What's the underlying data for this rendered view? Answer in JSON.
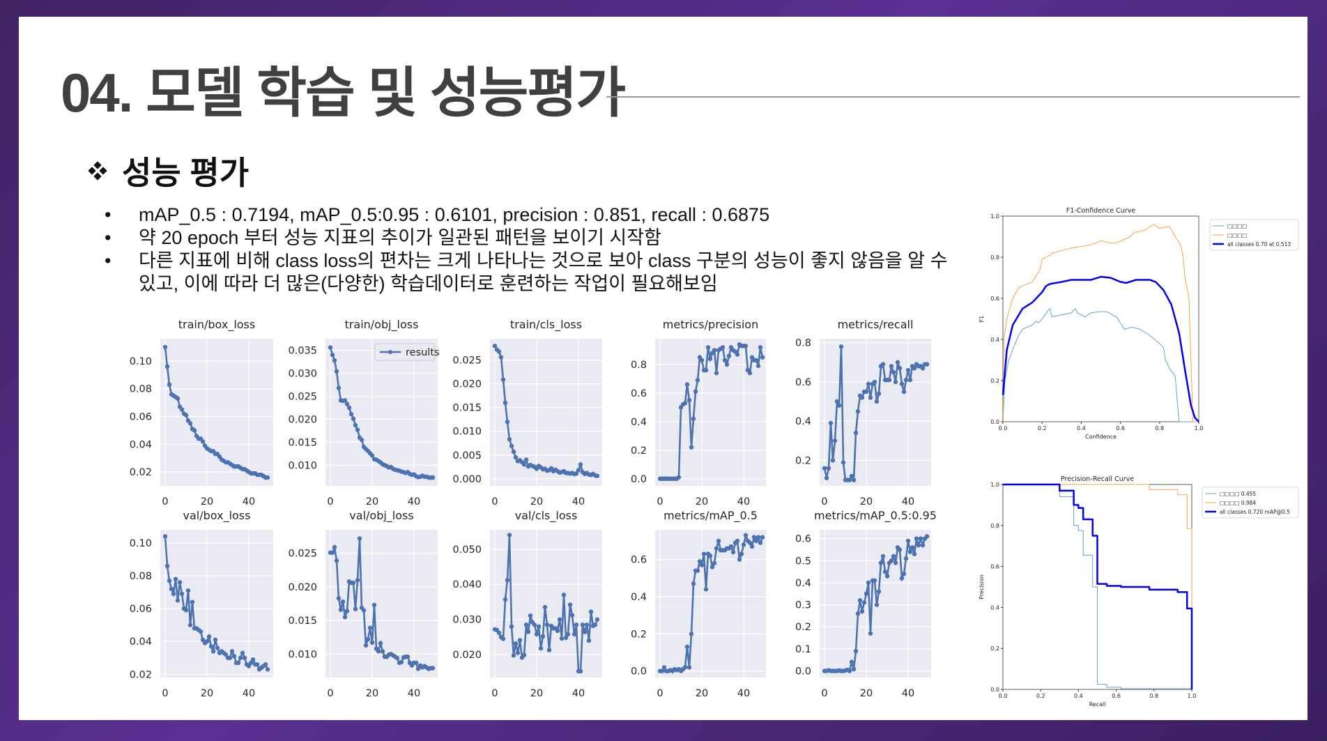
{
  "slide": {
    "title": "04. 모델 학습 및 성능평가",
    "section": "성능 평가",
    "bullets": [
      "mAP_0.5 : 0.7194, mAP_0.5:0.95 : 0.6101, precision : 0.851, recall : 0.6875",
      "약 20 epoch 부터 성능 지표의 추이가 일관된 패턴을 보이기 시작함",
      "다른 지표에 비해 class loss의 편차는 크게 나타나는 것으로 보아 class 구분의 성능이 좋지 않음을 알 수"
    ],
    "bullet_continuation": "있고, 이에 따라 더 많은(다양한) 학습데이터로 훈련하는 작업이 필요해보임",
    "bullet_marker": "•",
    "colors": {
      "frame": "#4a2878",
      "title": "#404040",
      "series": "#4c72b0",
      "plot_bg": "#eaeaf2"
    }
  },
  "chart_data": [
    {
      "type": "line",
      "title": "train/box_loss",
      "xlabel": "",
      "ylabel": "",
      "xticks": [
        0,
        20,
        40
      ],
      "yticks": [
        0.02,
        0.04,
        0.06,
        0.08,
        0.1
      ],
      "ylim": [
        0.01,
        0.116
      ],
      "legend": null,
      "values": [
        0.11,
        0.096,
        0.083,
        0.076,
        0.075,
        0.074,
        0.073,
        0.067,
        0.065,
        0.062,
        0.061,
        0.057,
        0.055,
        0.051,
        0.05,
        0.046,
        0.044,
        0.044,
        0.042,
        0.039,
        0.037,
        0.036,
        0.035,
        0.035,
        0.033,
        0.033,
        0.031,
        0.029,
        0.028,
        0.027,
        0.027,
        0.026,
        0.025,
        0.024,
        0.024,
        0.024,
        0.023,
        0.022,
        0.022,
        0.021,
        0.02,
        0.019,
        0.019,
        0.019,
        0.018,
        0.018,
        0.018,
        0.017,
        0.016,
        0.016
      ]
    },
    {
      "type": "line",
      "title": "train/obj_loss",
      "xticks": [
        0,
        20,
        40
      ],
      "yticks": [
        0.01,
        0.015,
        0.02,
        0.025,
        0.03,
        0.035
      ],
      "ylim": [
        0.0055,
        0.0375
      ],
      "legend": "results",
      "values": [
        0.0356,
        0.034,
        0.0328,
        0.0304,
        0.0268,
        0.0241,
        0.024,
        0.0241,
        0.0233,
        0.0225,
        0.0211,
        0.0201,
        0.0187,
        0.0177,
        0.016,
        0.0155,
        0.014,
        0.0135,
        0.0131,
        0.0126,
        0.0121,
        0.0113,
        0.0112,
        0.0109,
        0.0106,
        0.0102,
        0.01,
        0.0098,
        0.0095,
        0.0096,
        0.0092,
        0.009,
        0.0089,
        0.0088,
        0.0086,
        0.0085,
        0.0083,
        0.0085,
        0.0081,
        0.0079,
        0.008,
        0.0076,
        0.0074,
        0.0075,
        0.0077,
        0.0075,
        0.0075,
        0.0073,
        0.0073,
        0.0073
      ]
    },
    {
      "type": "line",
      "title": "train/cls_loss",
      "xticks": [
        0,
        20,
        40
      ],
      "yticks": [
        0.0,
        0.005,
        0.01,
        0.015,
        0.02,
        0.025
      ],
      "ylim": [
        -0.0015,
        0.0295
      ],
      "legend": null,
      "values": [
        0.028,
        0.0272,
        0.0268,
        0.0256,
        0.0209,
        0.016,
        0.012,
        0.0083,
        0.0069,
        0.0057,
        0.0045,
        0.0037,
        0.0039,
        0.0035,
        0.003,
        0.004,
        0.0026,
        0.0029,
        0.0027,
        0.0025,
        0.0021,
        0.0027,
        0.0024,
        0.002,
        0.0021,
        0.0017,
        0.0018,
        0.0022,
        0.0016,
        0.0019,
        0.0016,
        0.0013,
        0.0014,
        0.0016,
        0.0012,
        0.0012,
        0.0011,
        0.0012,
        0.001,
        0.0011,
        0.0018,
        0.003,
        0.0014,
        0.001,
        0.0012,
        0.0009,
        0.0008,
        0.001,
        0.0007,
        0.0006
      ]
    },
    {
      "type": "line",
      "title": "metrics/precision",
      "xticks": [
        0,
        20,
        40
      ],
      "yticks": [
        0.0,
        0.2,
        0.4,
        0.6,
        0.8
      ],
      "ylim": [
        -0.05,
        0.98
      ],
      "legend": null,
      "values": [
        0.0,
        0.0,
        0.0,
        0.0,
        0.0,
        0.0,
        0.0,
        0.0,
        0.0,
        0.01,
        0.5,
        0.52,
        0.53,
        0.66,
        0.55,
        0.22,
        0.42,
        0.61,
        0.69,
        0.85,
        0.83,
        0.76,
        0.76,
        0.92,
        0.84,
        0.88,
        0.9,
        0.74,
        0.9,
        0.91,
        0.92,
        0.83,
        0.8,
        0.86,
        0.92,
        0.9,
        0.89,
        0.87,
        0.94,
        0.93,
        0.93,
        0.93,
        0.76,
        0.74,
        0.85,
        0.83,
        0.83,
        0.79,
        0.92,
        0.85
      ]
    },
    {
      "type": "line",
      "title": "metrics/recall",
      "xticks": [
        0,
        20,
        40
      ],
      "yticks": [
        0.2,
        0.4,
        0.6,
        0.8
      ],
      "ylim": [
        0.07,
        0.82
      ],
      "legend": null,
      "values": [
        0.16,
        0.11,
        0.16,
        0.39,
        0.2,
        0.3,
        0.5,
        0.48,
        0.78,
        0.19,
        0.1,
        0.1,
        0.1,
        0.12,
        0.1,
        0.34,
        0.45,
        0.53,
        0.52,
        0.55,
        0.55,
        0.59,
        0.52,
        0.59,
        0.6,
        0.5,
        0.54,
        0.68,
        0.69,
        0.61,
        0.61,
        0.61,
        0.68,
        0.65,
        0.6,
        0.7,
        0.67,
        0.59,
        0.55,
        0.61,
        0.66,
        0.61,
        0.68,
        0.67,
        0.69,
        0.68,
        0.68,
        0.67,
        0.69,
        0.69
      ]
    },
    {
      "type": "line",
      "title": "val/box_loss",
      "xticks": [
        0,
        20,
        40
      ],
      "yticks": [
        0.02,
        0.04,
        0.06,
        0.08,
        0.1
      ],
      "ylim": [
        0.018,
        0.108
      ],
      "legend": null,
      "values": [
        0.104,
        0.086,
        0.077,
        0.072,
        0.069,
        0.078,
        0.065,
        0.076,
        0.069,
        0.06,
        0.059,
        0.071,
        0.05,
        0.064,
        0.048,
        0.048,
        0.047,
        0.046,
        0.041,
        0.039,
        0.04,
        0.043,
        0.037,
        0.034,
        0.041,
        0.036,
        0.033,
        0.034,
        0.033,
        0.032,
        0.03,
        0.03,
        0.034,
        0.031,
        0.027,
        0.027,
        0.03,
        0.033,
        0.03,
        0.026,
        0.025,
        0.027,
        0.029,
        0.026,
        0.026,
        0.023,
        0.024,
        0.025,
        0.026,
        0.023
      ]
    },
    {
      "type": "line",
      "title": "val/obj_loss",
      "xticks": [
        0,
        20,
        40
      ],
      "yticks": [
        0.01,
        0.015,
        0.02,
        0.025
      ],
      "ylim": [
        0.0065,
        0.0285
      ],
      "legend": null,
      "values": [
        0.0251,
        0.0251,
        0.0259,
        0.0239,
        0.0183,
        0.0166,
        0.0178,
        0.0155,
        0.0164,
        0.0208,
        0.0206,
        0.0206,
        0.0167,
        0.021,
        0.0272,
        0.0169,
        0.0165,
        0.0113,
        0.0122,
        0.0139,
        0.0117,
        0.0173,
        0.0108,
        0.0104,
        0.0116,
        0.0104,
        0.0096,
        0.0096,
        0.0099,
        0.01,
        0.0098,
        0.0096,
        0.0094,
        0.0087,
        0.0088,
        0.0095,
        0.0096,
        0.0096,
        0.0087,
        0.0083,
        0.0087,
        0.0087,
        0.0078,
        0.0083,
        0.008,
        0.0082,
        0.008,
        0.0078,
        0.0079,
        0.0079
      ]
    },
    {
      "type": "line",
      "title": "val/cls_loss",
      "xticks": [
        0,
        20,
        40
      ],
      "yticks": [
        0.02,
        0.03,
        0.04,
        0.05
      ],
      "ylim": [
        0.0135,
        0.0555
      ],
      "legend": null,
      "values": [
        0.0272,
        0.027,
        0.0262,
        0.025,
        0.0245,
        0.0357,
        0.0412,
        0.054,
        0.028,
        0.0198,
        0.0232,
        0.0205,
        0.0241,
        0.0192,
        0.0199,
        0.0285,
        0.0265,
        0.0311,
        0.0292,
        0.0285,
        0.0258,
        0.028,
        0.0218,
        0.0252,
        0.0335,
        0.0285,
        0.0213,
        0.0282,
        0.0275,
        0.0275,
        0.0268,
        0.03,
        0.0246,
        0.037,
        0.0248,
        0.0258,
        0.0342,
        0.0312,
        0.0258,
        0.0285,
        0.0153,
        0.0153,
        0.0285,
        0.0265,
        0.0285,
        0.024,
        0.0322,
        0.0282,
        0.0285,
        0.03
      ]
    },
    {
      "type": "line",
      "title": "metrics/mAP_0.5",
      "xticks": [
        0,
        20,
        40
      ],
      "yticks": [
        0.0,
        0.2,
        0.4,
        0.6
      ],
      "ylim": [
        -0.035,
        0.76
      ],
      "legend": null,
      "values": [
        0.0,
        0.0,
        0.02,
        0.0,
        0.0,
        0.005,
        0.0,
        0.01,
        0.005,
        0.01,
        0.0,
        0.01,
        0.02,
        0.13,
        0.02,
        0.2,
        0.47,
        0.54,
        0.54,
        0.59,
        0.57,
        0.63,
        0.44,
        0.63,
        0.62,
        0.56,
        0.58,
        0.66,
        0.7,
        0.65,
        0.65,
        0.65,
        0.66,
        0.66,
        0.67,
        0.64,
        0.69,
        0.7,
        0.6,
        0.63,
        0.68,
        0.73,
        0.7,
        0.69,
        0.67,
        0.72,
        0.7,
        0.72,
        0.69,
        0.72
      ]
    },
    {
      "type": "line",
      "title": "metrics/mAP_0.5:0.95",
      "xticks": [
        0,
        20,
        40
      ],
      "yticks": [
        0.0,
        0.1,
        0.2,
        0.3,
        0.4,
        0.5,
        0.6
      ],
      "ylim": [
        -0.03,
        0.64
      ],
      "legend": null,
      "values": [
        0.0,
        0.0,
        0.003,
        0.0,
        0.0,
        0.0,
        0.0,
        0.002,
        0.0,
        0.0,
        0.002,
        0.005,
        0.0,
        0.04,
        0.008,
        0.09,
        0.26,
        0.32,
        0.27,
        0.31,
        0.35,
        0.4,
        0.17,
        0.41,
        0.41,
        0.3,
        0.36,
        0.49,
        0.52,
        0.45,
        0.43,
        0.49,
        0.5,
        0.52,
        0.49,
        0.56,
        0.55,
        0.42,
        0.44,
        0.51,
        0.59,
        0.54,
        0.56,
        0.53,
        0.6,
        0.57,
        0.6,
        0.57,
        0.6,
        0.61
      ]
    },
    {
      "type": "line",
      "title": "F1-Confidence Curve",
      "xlabel": "Confidence",
      "ylabel": "F1",
      "xlim": [
        0,
        1
      ],
      "ylim": [
        0,
        1
      ],
      "xticks": [
        0.0,
        0.2,
        0.4,
        0.6,
        0.8,
        1.0
      ],
      "yticks": [
        0.0,
        0.2,
        0.4,
        0.6,
        0.8,
        1.0
      ],
      "series": [
        {
          "name": "□□□□",
          "color": "#5fa2d5",
          "width": 1,
          "x": [
            0,
            0.01,
            0.03,
            0.05,
            0.08,
            0.1,
            0.15,
            0.17,
            0.18,
            0.2,
            0.23,
            0.24,
            0.25,
            0.3,
            0.35,
            0.37,
            0.38,
            0.42,
            0.45,
            0.5,
            0.53,
            0.58,
            0.62,
            0.66,
            0.7,
            0.75,
            0.8,
            0.82,
            0.83,
            0.85,
            0.88,
            0.89,
            0.9,
            0.95,
            1.0
          ],
          "y": [
            0.0,
            0.2,
            0.3,
            0.35,
            0.42,
            0.45,
            0.47,
            0.49,
            0.48,
            0.5,
            0.54,
            0.55,
            0.51,
            0.52,
            0.53,
            0.55,
            0.53,
            0.51,
            0.53,
            0.535,
            0.535,
            0.51,
            0.45,
            0.46,
            0.45,
            0.42,
            0.38,
            0.36,
            0.3,
            0.26,
            0.22,
            0.1,
            0.0,
            0.0,
            0.0
          ]
        },
        {
          "name": "□□□□",
          "color": "#ff9f4a",
          "width": 1,
          "x": [
            0,
            0.005,
            0.02,
            0.05,
            0.08,
            0.1,
            0.15,
            0.19,
            0.2,
            0.24,
            0.25,
            0.33,
            0.35,
            0.45,
            0.5,
            0.55,
            0.58,
            0.65,
            0.67,
            0.72,
            0.77,
            0.8,
            0.85,
            0.88,
            0.9,
            0.91,
            0.92,
            0.93,
            0.95,
            0.97,
            1.0
          ],
          "y": [
            0.0,
            0.4,
            0.5,
            0.6,
            0.65,
            0.66,
            0.68,
            0.74,
            0.79,
            0.81,
            0.82,
            0.84,
            0.845,
            0.86,
            0.88,
            0.87,
            0.87,
            0.9,
            0.92,
            0.93,
            0.96,
            0.94,
            0.95,
            0.9,
            0.87,
            0.85,
            0.8,
            0.7,
            0.6,
            0.0,
            0.0
          ]
        },
        {
          "name": "all classes 0.70 at 0.513",
          "color": "#0000ee",
          "width": 2.5,
          "x": [
            0,
            0.02,
            0.05,
            0.1,
            0.15,
            0.2,
            0.22,
            0.24,
            0.3,
            0.35,
            0.4,
            0.45,
            0.5,
            0.55,
            0.6,
            0.63,
            0.68,
            0.75,
            0.78,
            0.82,
            0.86,
            0.9,
            0.93,
            0.96,
            0.98,
            1.0
          ],
          "y": [
            0.13,
            0.35,
            0.47,
            0.55,
            0.58,
            0.63,
            0.66,
            0.67,
            0.68,
            0.69,
            0.69,
            0.69,
            0.705,
            0.7,
            0.68,
            0.675,
            0.69,
            0.69,
            0.68,
            0.64,
            0.57,
            0.43,
            0.25,
            0.08,
            0.02,
            0.0
          ]
        }
      ]
    },
    {
      "type": "line",
      "title": "Precision-Recall Curve",
      "xlabel": "Recall",
      "ylabel": "Precision",
      "xlim": [
        0,
        1
      ],
      "ylim": [
        0,
        1
      ],
      "xticks": [
        0.0,
        0.2,
        0.4,
        0.6,
        0.8,
        1.0
      ],
      "yticks": [
        0.0,
        0.2,
        0.4,
        0.6,
        0.8,
        1.0
      ],
      "series": [
        {
          "name": "□□□□ 0.455",
          "color": "#5fa2d5",
          "width": 1,
          "x": [
            0,
            0.3,
            0.3,
            0.375,
            0.375,
            0.4,
            0.4,
            0.425,
            0.425,
            0.475,
            0.475,
            0.5,
            0.5,
            0.55,
            0.55,
            0.625,
            0.625,
            1.0,
            1.0
          ],
          "y": [
            1.0,
            1.0,
            0.94,
            0.94,
            0.8,
            0.8,
            0.775,
            0.775,
            0.655,
            0.655,
            0.5,
            0.5,
            0.025,
            0.025,
            0.01,
            0.01,
            0.003,
            0.003,
            0.0
          ]
        },
        {
          "name": "□□□□ 0.984",
          "color": "#ff9f4a",
          "width": 1,
          "x": [
            0,
            0.775,
            0.775,
            0.925,
            0.925,
            0.975,
            0.975,
            1.0,
            1.0
          ],
          "y": [
            1.0,
            1.0,
            0.975,
            0.975,
            0.95,
            0.95,
            0.785,
            0.785,
            0.0
          ]
        },
        {
          "name": "all classes 0.720 mAP@0.5",
          "color": "#0000ee",
          "width": 2.5,
          "x": [
            0,
            0.3,
            0.3,
            0.375,
            0.375,
            0.4,
            0.4,
            0.425,
            0.425,
            0.475,
            0.475,
            0.5,
            0.5,
            0.55,
            0.55,
            0.625,
            0.625,
            0.775,
            0.775,
            0.925,
            0.925,
            0.975,
            0.975,
            1.0,
            1.0
          ],
          "y": [
            1.0,
            1.0,
            0.97,
            0.97,
            0.9,
            0.9,
            0.885,
            0.885,
            0.83,
            0.83,
            0.75,
            0.75,
            0.515,
            0.515,
            0.505,
            0.505,
            0.5,
            0.5,
            0.487,
            0.487,
            0.475,
            0.475,
            0.395,
            0.395,
            0.0
          ]
        }
      ]
    }
  ]
}
